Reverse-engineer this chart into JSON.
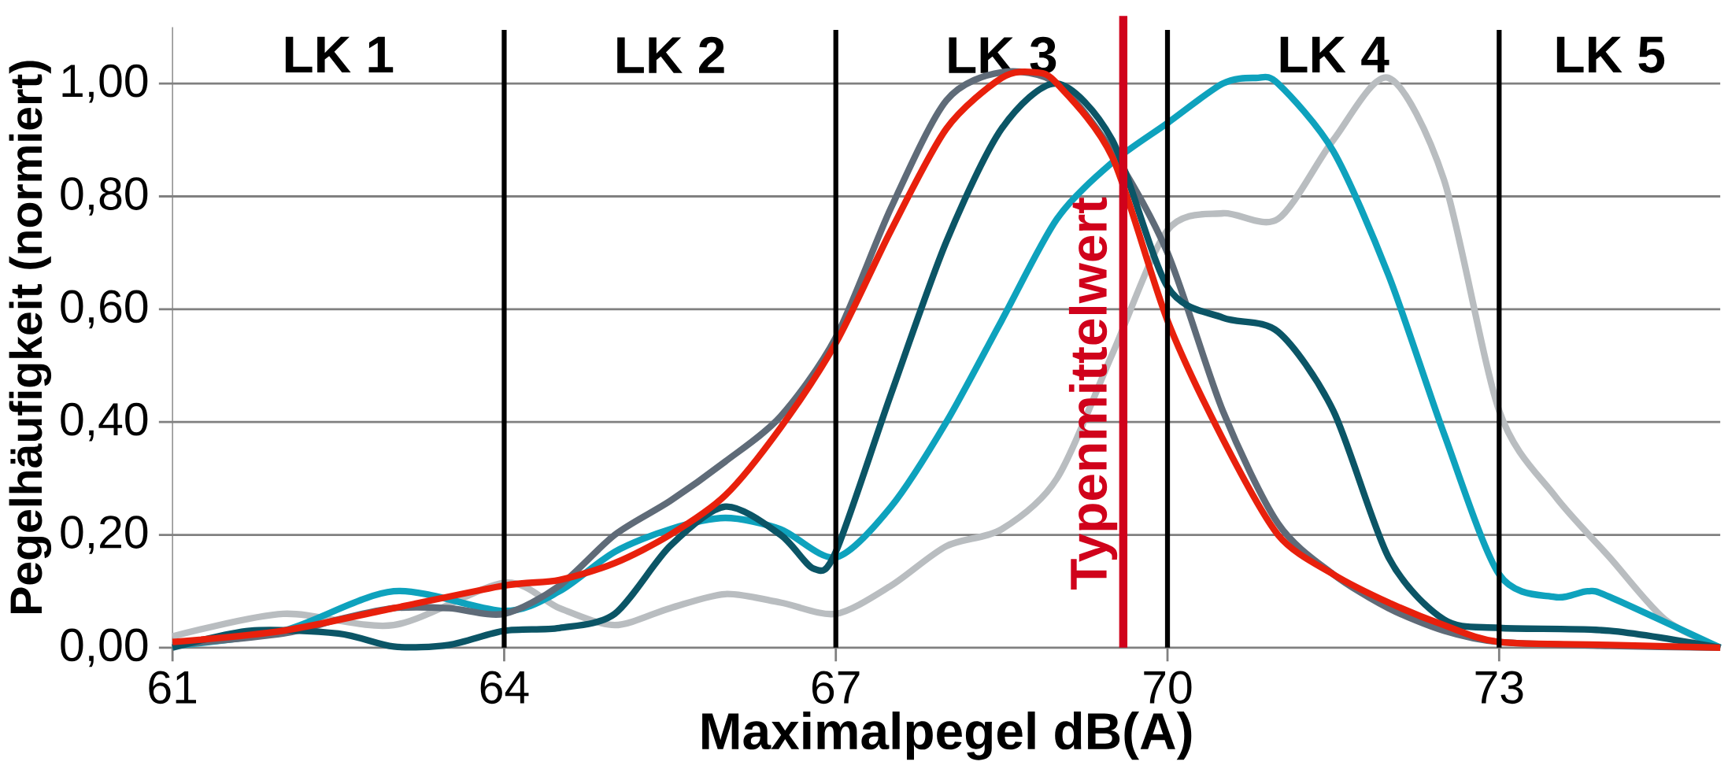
{
  "chart_data": {
    "type": "line",
    "xlabel": "Maximalpegel dB(A)",
    "ylabel": "Pegelhäufigkeit (normiert)",
    "xlim": [
      61,
      75
    ],
    "xticks": [
      61,
      64,
      67,
      70,
      73
    ],
    "ylim": [
      0,
      1.1
    ],
    "yticks": [
      {
        "value": 0,
        "label": "0,00"
      },
      {
        "value": 0.2,
        "label": "0,20"
      },
      {
        "value": 0.4,
        "label": "0,40"
      },
      {
        "value": 0.6,
        "label": "0,60"
      },
      {
        "value": 0.8,
        "label": "0,80"
      },
      {
        "value": 1,
        "label": "1,00"
      }
    ],
    "grid": "y",
    "marker": "none",
    "line_style": "solid",
    "ref_lines": [
      {
        "axis": "x",
        "value": 64,
        "color": "#000000"
      },
      {
        "axis": "x",
        "value": 67,
        "color": "#000000"
      },
      {
        "axis": "x",
        "value": 70,
        "color": "#000000"
      },
      {
        "axis": "x",
        "value": 73,
        "color": "#000000"
      },
      {
        "axis": "x",
        "value": 69.6,
        "label": "Typenmittelwert",
        "color": "#d0021b"
      }
    ],
    "annotations": [
      "LK 1",
      "LK 2",
      "LK 3",
      "LK 4",
      "LK 5"
    ],
    "series": [
      {
        "color": "#b9bdc0",
        "x": [
          61,
          62,
          63,
          64,
          64.5,
          65,
          65.5,
          66,
          66.5,
          67,
          67.5,
          68,
          68.5,
          69,
          69.5,
          70,
          70.5,
          71,
          71.5,
          72,
          72.5,
          73,
          73.5,
          74,
          74.5,
          75
        ],
        "values": [
          0.02,
          0.06,
          0.04,
          0.115,
          0.07,
          0.04,
          0.07,
          0.095,
          0.08,
          0.06,
          0.11,
          0.18,
          0.21,
          0.3,
          0.52,
          0.74,
          0.77,
          0.76,
          0.9,
          1.01,
          0.83,
          0.42,
          0.27,
          0.16,
          0.05,
          0
        ]
      },
      {
        "color": "#0ea2bd",
        "x": [
          61,
          62,
          63,
          64,
          64.5,
          65,
          65.5,
          66,
          66.5,
          67,
          67.5,
          68,
          68.5,
          69,
          69.5,
          70,
          70.5,
          70.8,
          71,
          71.5,
          72,
          72.5,
          73,
          73.5,
          73.8,
          74,
          75
        ],
        "values": [
          0.003,
          0.03,
          0.1,
          0.065,
          0.1,
          0.17,
          0.21,
          0.23,
          0.21,
          0.16,
          0.25,
          0.4,
          0.58,
          0.76,
          0.86,
          0.93,
          1.0,
          1.01,
          1.0,
          0.88,
          0.66,
          0.38,
          0.13,
          0.09,
          0.1,
          0.09,
          0
        ]
      },
      {
        "color": "#5f6b78",
        "x": [
          61,
          62,
          62.5,
          63,
          63.5,
          64,
          64.5,
          65,
          65.5,
          66,
          66.5,
          67,
          67.5,
          68,
          68.5,
          69,
          69.5,
          70,
          70.5,
          71,
          71.5,
          72,
          72.5,
          73,
          74,
          75
        ],
        "values": [
          0.005,
          0.025,
          0.05,
          0.07,
          0.07,
          0.06,
          0.11,
          0.2,
          0.26,
          0.33,
          0.41,
          0.55,
          0.78,
          0.97,
          1.02,
          1.0,
          0.88,
          0.7,
          0.42,
          0.22,
          0.13,
          0.07,
          0.03,
          0.01,
          0.003,
          0
        ]
      },
      {
        "color": "#0b5566",
        "x": [
          61,
          61.7,
          62.5,
          63,
          63.5,
          64,
          64.5,
          65,
          65.5,
          66,
          66.5,
          66.8,
          67,
          67.5,
          68,
          68.5,
          69,
          69.5,
          70,
          70.5,
          71,
          71.5,
          72,
          72.5,
          73,
          74,
          75
        ],
        "values": [
          0,
          0.03,
          0.025,
          0.002,
          0.005,
          0.03,
          0.035,
          0.06,
          0.18,
          0.25,
          0.2,
          0.14,
          0.17,
          0.45,
          0.72,
          0.92,
          1.0,
          0.9,
          0.64,
          0.585,
          0.56,
          0.42,
          0.16,
          0.05,
          0.035,
          0.03,
          0
        ]
      },
      {
        "color": "#e8200c",
        "x": [
          61,
          62,
          63,
          64,
          64.5,
          65,
          65.5,
          66,
          66.5,
          67,
          67.5,
          68,
          68.5,
          68.8,
          69,
          69.5,
          70,
          70.5,
          71,
          71.5,
          72,
          72.5,
          73,
          74,
          75
        ],
        "values": [
          0.01,
          0.03,
          0.07,
          0.11,
          0.12,
          0.15,
          0.2,
          0.27,
          0.39,
          0.54,
          0.74,
          0.92,
          1.01,
          1.02,
          1.0,
          0.87,
          0.58,
          0.37,
          0.2,
          0.13,
          0.08,
          0.04,
          0.01,
          0.005,
          0
        ]
      }
    ]
  }
}
